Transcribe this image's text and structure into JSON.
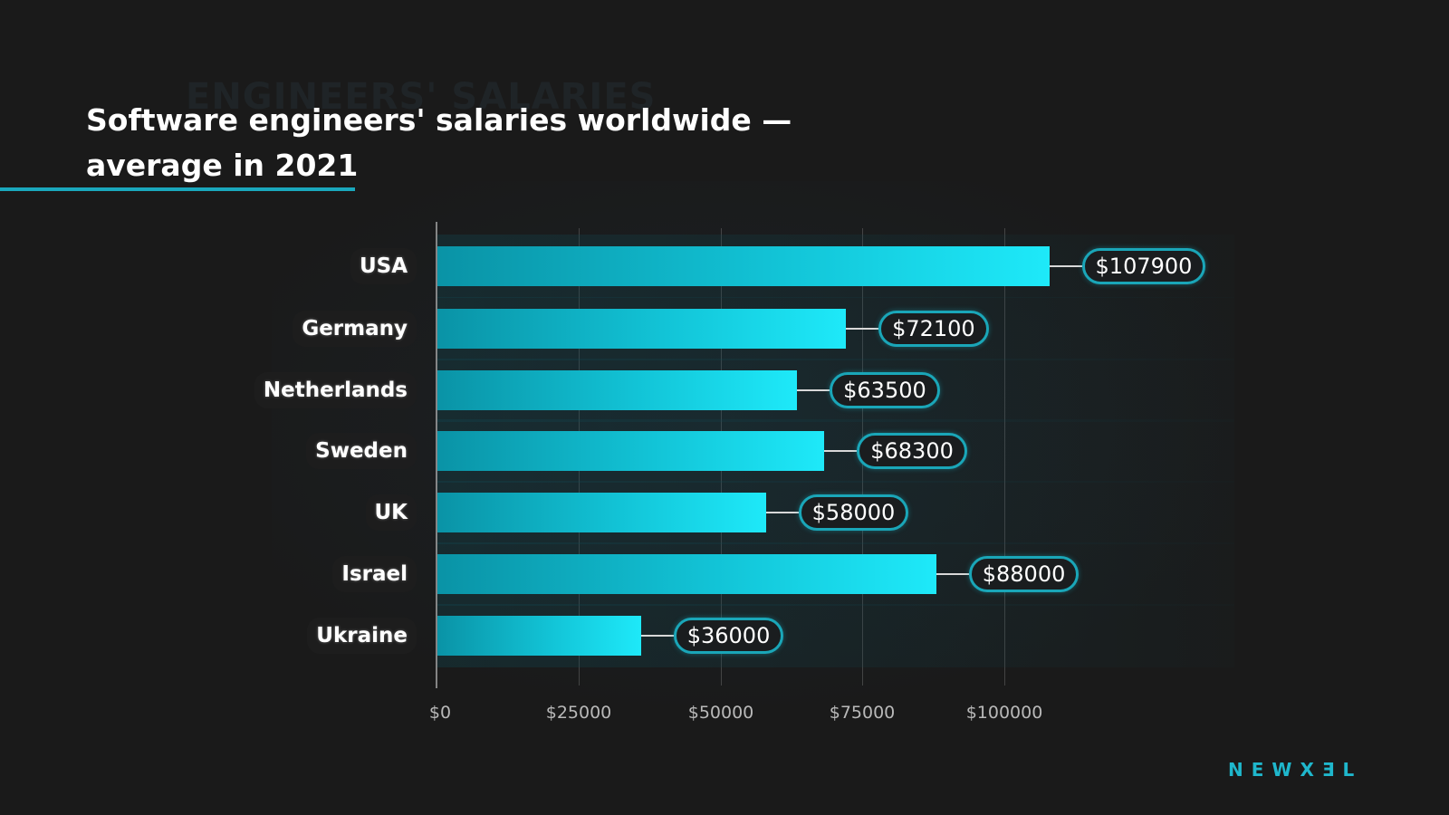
{
  "header": {
    "watermark": "ENGINEERS' SALARIES",
    "title_line1": "Software engineers' salaries worldwide —",
    "title_line2": "average in 2021"
  },
  "brand": {
    "logo_text": "NEWXƎL"
  },
  "colors": {
    "background": "#1a1a1a",
    "accent": "#1aa8bd",
    "bar_start": "#0a93a6",
    "bar_end": "#1ee9f9",
    "pill_border": "#1aa6b8",
    "text": "#ffffff",
    "tick_text": "#b9b9b9"
  },
  "chart_data": {
    "type": "bar",
    "orientation": "horizontal",
    "title": "Software engineers' salaries worldwide — average in 2021",
    "categories": [
      "USA",
      "Germany",
      "Netherlands",
      "Sweden",
      "UK",
      "Israel",
      "Ukraine"
    ],
    "values": [
      107900,
      72100,
      63500,
      68300,
      58000,
      88000,
      36000
    ],
    "value_labels": [
      "$107900",
      "$72100",
      "$63500",
      "$68300",
      "$58000",
      "$88000",
      "$36000"
    ],
    "xlabel": "",
    "ylabel": "",
    "xlim": [
      0,
      112000
    ],
    "x_ticks": [
      0,
      25000,
      50000,
      75000,
      100000
    ],
    "x_tick_labels": [
      "$0",
      "$25000",
      "$50000",
      "$75000",
      "$100000"
    ],
    "grid": true,
    "legend": null
  }
}
